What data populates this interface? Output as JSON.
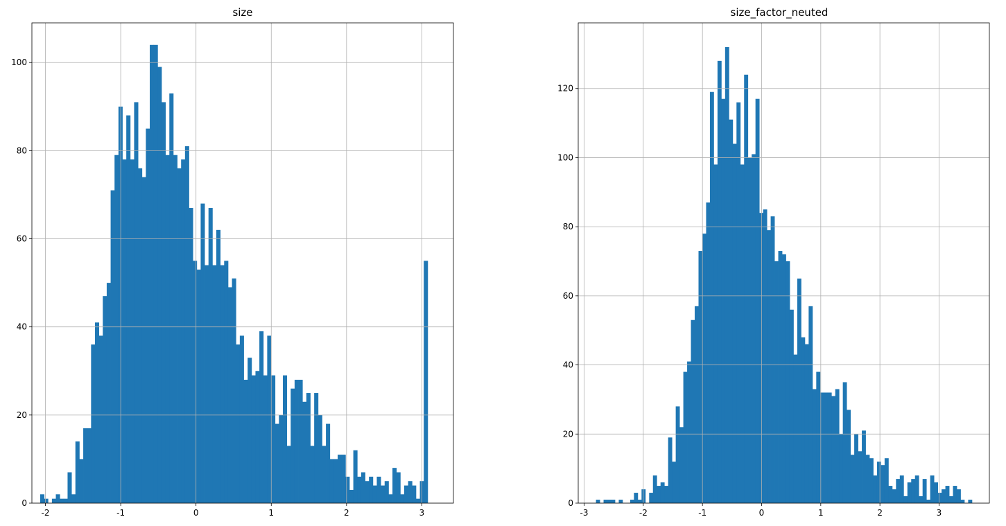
{
  "colors": {
    "bar": "#1f77b4",
    "grid": "#b0b0b0",
    "axis": "#000000"
  },
  "chart_data": [
    {
      "type": "bar",
      "title": "size",
      "xlim": [
        -2.18,
        3.42
      ],
      "ylim": [
        0,
        109
      ],
      "xticks": [
        -2,
        -1,
        0,
        1,
        2,
        3
      ],
      "xtick_labels": [
        "-2",
        "-1",
        "0",
        "1",
        "2",
        "3"
      ],
      "yticks": [
        0,
        20,
        40,
        60,
        80,
        100
      ],
      "ytick_labels": [
        "0",
        "20",
        "40",
        "60",
        "80",
        "100"
      ],
      "grid": true,
      "bin_start": -2.07,
      "bin_width": 0.052,
      "values": [
        2,
        1,
        0,
        1,
        2,
        1,
        1,
        7,
        2,
        14,
        10,
        17,
        17,
        36,
        41,
        38,
        47,
        50,
        71,
        79,
        90,
        78,
        88,
        78,
        91,
        76,
        74,
        85,
        104,
        104,
        99,
        91,
        79,
        93,
        79,
        76,
        78,
        81,
        67,
        55,
        53,
        68,
        54,
        67,
        54,
        62,
        54,
        55,
        49,
        51,
        36,
        38,
        28,
        33,
        29,
        30,
        39,
        29,
        38,
        29,
        18,
        20,
        29,
        13,
        26,
        28,
        28,
        23,
        25,
        13,
        25,
        20,
        13,
        18,
        10,
        10,
        11,
        11,
        6,
        3,
        12,
        6,
        7,
        5,
        6,
        4,
        6,
        4,
        5,
        2,
        8,
        7,
        2,
        4,
        5,
        4,
        1,
        5,
        55
      ]
    },
    {
      "type": "bar",
      "title": "size_factor_neuted",
      "xlim": [
        -3.1,
        3.85
      ],
      "ylim": [
        0,
        139
      ],
      "xticks": [
        -3,
        -2,
        -1,
        0,
        1,
        2,
        3
      ],
      "xtick_labels": [
        "-3",
        "-2",
        "-1",
        "0",
        "1",
        "2",
        "3"
      ],
      "yticks": [
        0,
        20,
        40,
        60,
        80,
        100,
        120
      ],
      "ytick_labels": [
        "0",
        "20",
        "40",
        "60",
        "80",
        "100",
        "120"
      ],
      "grid": true,
      "bin_start": -2.8,
      "bin_width": 0.0642,
      "values": [
        1,
        0,
        1,
        1,
        1,
        0,
        1,
        0,
        0,
        1,
        3,
        1,
        4,
        0,
        3,
        8,
        5,
        6,
        5,
        19,
        12,
        28,
        22,
        38,
        41,
        53,
        57,
        73,
        78,
        87,
        119,
        98,
        128,
        117,
        132,
        111,
        104,
        116,
        98,
        124,
        100,
        101,
        117,
        84,
        85,
        79,
        83,
        70,
        73,
        72,
        70,
        56,
        43,
        65,
        48,
        46,
        57,
        33,
        38,
        32,
        32,
        32,
        31,
        33,
        20,
        35,
        27,
        14,
        20,
        15,
        21,
        14,
        13,
        8,
        12,
        11,
        13,
        5,
        4,
        7,
        8,
        2,
        6,
        7,
        8,
        2,
        7,
        1,
        8,
        6,
        3,
        4,
        5,
        2,
        5,
        4,
        1,
        0,
        1
      ]
    }
  ]
}
